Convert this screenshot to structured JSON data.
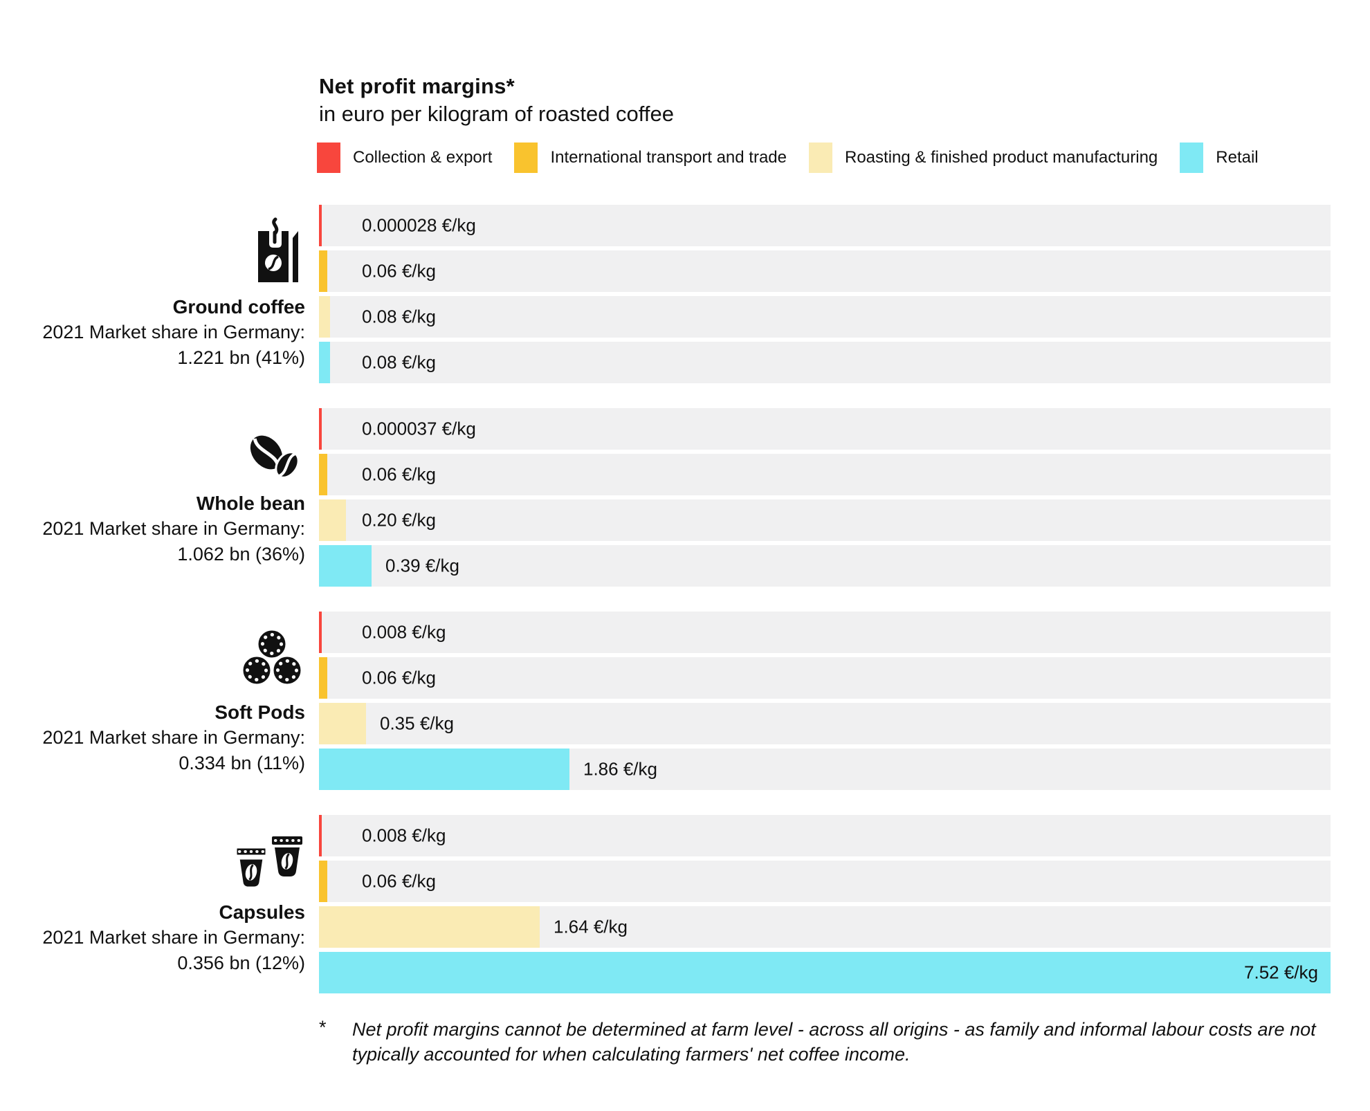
{
  "header": {
    "title": "Net profit margins*",
    "subtitle": "in euro per kilogram of roasted coffee"
  },
  "legend": [
    {
      "label": "Collection & export",
      "color": "#F8463D"
    },
    {
      "label": "International transport and trade",
      "color": "#F9C32E"
    },
    {
      "label": "Roasting & finished product manufacturing",
      "color": "#FAEBB4"
    },
    {
      "label": "Retail",
      "color": "#7FE9F4"
    }
  ],
  "colors": {
    "track_background": "#F0F0F1",
    "text": "#111111"
  },
  "chart_data": {
    "type": "bar",
    "orientation": "horizontal",
    "unit": "€/kg",
    "value_axis_max": 7.52,
    "grid": false,
    "legend_position": "top",
    "series_names": [
      "Collection & export",
      "International transport and trade",
      "Roasting & finished product manufacturing",
      "Retail"
    ],
    "groups": [
      {
        "name": "Ground coffee",
        "icon": "coffee-bag-icon",
        "market_share_caption": "2021 Market share in Germany:",
        "market_share_value": "1.221 bn (41%)",
        "bars": [
          {
            "segment": "Collection & export",
            "value": 2.8e-05,
            "label": "0.000028 €/kg",
            "color": "#F8463D"
          },
          {
            "segment": "International transport and trade",
            "value": 0.06,
            "label": "0.06 €/kg",
            "color": "#F9C32E"
          },
          {
            "segment": "Roasting & finished product manufacturing",
            "value": 0.08,
            "label": "0.08 €/kg",
            "color": "#FAEBB4"
          },
          {
            "segment": "Retail",
            "value": 0.08,
            "label": "0.08 €/kg",
            "color": "#7FE9F4"
          }
        ]
      },
      {
        "name": "Whole bean",
        "icon": "coffee-beans-icon",
        "market_share_caption": "2021 Market share in Germany:",
        "market_share_value": "1.062 bn (36%)",
        "bars": [
          {
            "segment": "Collection & export",
            "value": 3.7e-05,
            "label": "0.000037 €/kg",
            "color": "#F8463D"
          },
          {
            "segment": "International transport and trade",
            "value": 0.06,
            "label": "0.06 €/kg",
            "color": "#F9C32E"
          },
          {
            "segment": "Roasting & finished product manufacturing",
            "value": 0.2,
            "label": "0.20 €/kg",
            "color": "#FAEBB4"
          },
          {
            "segment": "Retail",
            "value": 0.39,
            "label": "0.39 €/kg",
            "color": "#7FE9F4"
          }
        ]
      },
      {
        "name": "Soft Pods",
        "icon": "soft-pods-icon",
        "market_share_caption": "2021 Market share in Germany:",
        "market_share_value": "0.334 bn (11%)",
        "bars": [
          {
            "segment": "Collection & export",
            "value": 0.008,
            "label": "0.008 €/kg",
            "color": "#F8463D"
          },
          {
            "segment": "International transport and trade",
            "value": 0.06,
            "label": "0.06 €/kg",
            "color": "#F9C32E"
          },
          {
            "segment": "Roasting & finished product manufacturing",
            "value": 0.35,
            "label": "0.35 €/kg",
            "color": "#FAEBB4"
          },
          {
            "segment": "Retail",
            "value": 1.86,
            "label": "1.86 €/kg",
            "color": "#7FE9F4"
          }
        ]
      },
      {
        "name": "Capsules",
        "icon": "capsules-icon",
        "market_share_caption": "2021 Market share in Germany:",
        "market_share_value": "0.356 bn (12%)",
        "bars": [
          {
            "segment": "Collection & export",
            "value": 0.008,
            "label": "0.008 €/kg",
            "color": "#F8463D"
          },
          {
            "segment": "International transport and trade",
            "value": 0.06,
            "label": "0.06 €/kg",
            "color": "#F9C32E"
          },
          {
            "segment": "Roasting & finished product manufacturing",
            "value": 1.64,
            "label": "1.64 €/kg",
            "color": "#FAEBB4"
          },
          {
            "segment": "Retail",
            "value": 7.52,
            "label": "7.52 €/kg",
            "color": "#7FE9F4"
          }
        ]
      }
    ]
  },
  "footnote": {
    "marker": "*",
    "text": "Net profit margins cannot be determined at farm level - across all origins - as family and informal labour costs are not typically accounted for when calculating farmers' net coffee income."
  }
}
